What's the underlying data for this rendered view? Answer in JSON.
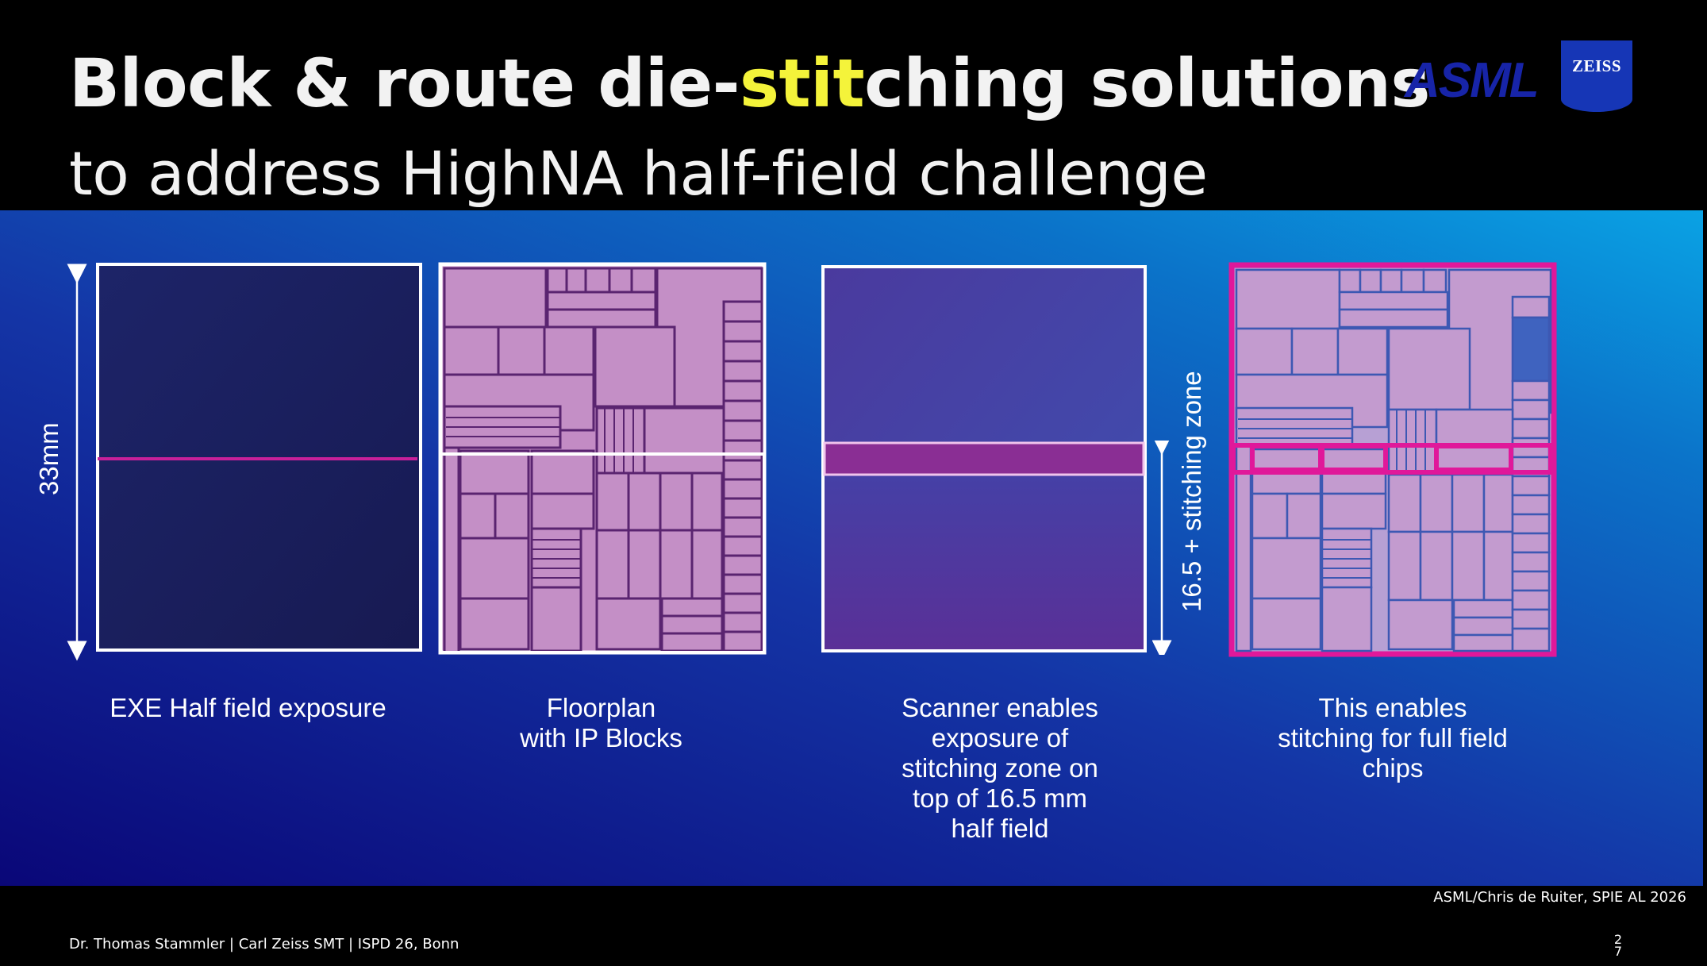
{
  "header": {
    "title_before": "Block & route die-",
    "title_highlight": "stit",
    "title_after": "ching solutions",
    "subtitle": "to address HighNA half-field challenge",
    "highlight_color": "#f4f33a"
  },
  "logos": {
    "asml": "ASML",
    "zeiss": "ZEISS"
  },
  "diagram": {
    "dimension_label": "33mm",
    "stitching_label": "16.5 + stitching zone",
    "captions": [
      "EXE Half field exposure",
      "Floorplan\nwith IP Blocks",
      "Scanner enables\nexposure of\nstitching zone on\ntop of 16.5 mm\nhalf field",
      "This enables\nstitching for full field\nchips"
    ],
    "colors": {
      "accent_magenta": "#e0189a",
      "block_fill": "#c48fc6",
      "block_line": "#5a2470"
    }
  },
  "credit": "ASML/Chris de Ruiter, SPIE AL 2026",
  "footer": {
    "presenter": "Dr. Thomas Stammler | Carl Zeiss SMT | ISPD 26, Bonn",
    "page": "27"
  }
}
